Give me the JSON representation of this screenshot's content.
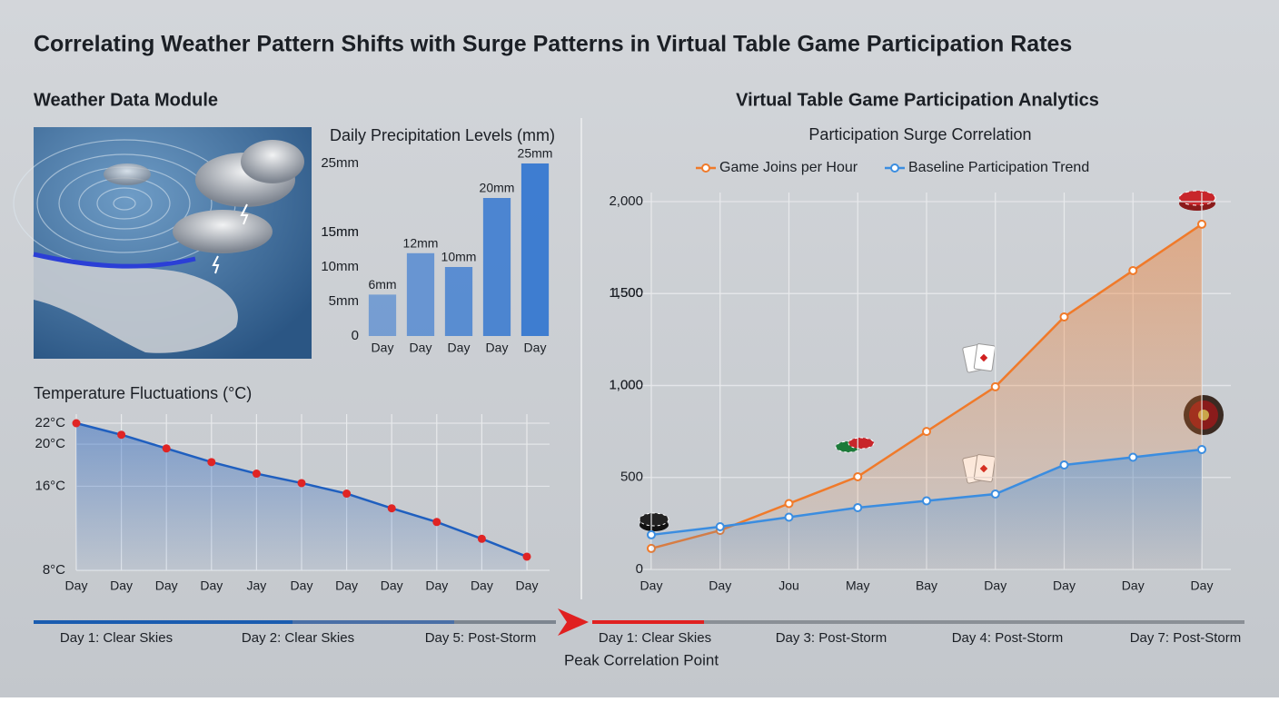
{
  "title": "Correlating Weather Pattern Shifts with Surge Patterns in Virtual Table Game Participation Rates",
  "left_heading": "Weather Data Module",
  "right_heading": "Virtual Table Game Participation Analytics",
  "chart_data": [
    {
      "type": "bar",
      "title": "Daily Precipitation Levels (mm)",
      "categories": [
        "Day",
        "Day",
        "Day",
        "Day",
        "Day"
      ],
      "values": [
        6,
        12,
        10,
        20,
        25
      ],
      "value_labels": [
        "6mm",
        "12mm",
        "10mm",
        "20mm",
        "25mm"
      ],
      "color": "#2f74d0",
      "ylim": [
        0,
        25
      ],
      "yticks": [
        0,
        {
          "value": 5,
          "label": "5mm"
        },
        {
          "value": 10,
          "label": "10mm"
        },
        {
          "value": 15,
          "label": "15mm"
        },
        {
          "value": 15,
          "label": "15mm"
        },
        {
          "value": 25,
          "label": "25mm"
        }
      ],
      "grid": false
    },
    {
      "type": "line",
      "title": "Temperature Fluctuations (°C)",
      "categories": [
        "Day",
        "Day",
        "Day",
        "Day",
        "Jay",
        "Day",
        "Day",
        "Day",
        "Day",
        "Day",
        "Day"
      ],
      "series": [
        {
          "color": "#1f5fbf",
          "marker_color": "#e02424",
          "values": [
            22,
            20.9,
            19.6,
            18.3,
            17.2,
            16.3,
            15.3,
            13.9,
            12.6,
            11.0,
            9.3
          ]
        }
      ],
      "ylim": [
        8,
        22
      ],
      "yticks": [
        {
          "value": 22,
          "label": "22°C"
        },
        {
          "value": 20,
          "label": "20°C"
        },
        {
          "value": 16,
          "label": "16°C"
        },
        {
          "value": 8,
          "label": "8°C"
        }
      ],
      "grid": true
    },
    {
      "type": "line",
      "title": "Participation Surge Correlation",
      "categories": [
        "Day",
        "Day",
        "Jou",
        "May",
        "Bay",
        "Day",
        "Day",
        "Day",
        "Day"
      ],
      "series": [
        {
          "name": "Game Joins per Hour",
          "color": "#f07a2a",
          "values": [
            114,
            212,
            358,
            504,
            750,
            993,
            1373,
            1625,
            1877
          ]
        },
        {
          "name": "Baseline Participation Trend",
          "color": "#3b8de0",
          "values": [
            188,
            232,
            284,
            336,
            373,
            410,
            568,
            610,
            652
          ]
        }
      ],
      "ylim": [
        0,
        2000
      ],
      "yticks": [
        {
          "value": 2000,
          "label": "2,000"
        },
        {
          "value": 1500,
          "label": "1,500"
        },
        {
          "value": 1000,
          "label": "1,000"
        },
        {
          "value": 1500,
          "label": "1,500"
        },
        {
          "value": 1000,
          "label": "1,000"
        },
        1500,
        500,
        0
      ],
      "grid": true
    }
  ],
  "timeline": {
    "labels": [
      "Day 1: Clear Skies",
      "Day 2: Clear Skies",
      "Day 5: Post-Storm",
      "Day 1: Clear Skies",
      "Day 3: Post-Storm",
      "Day 4: Post-Storm",
      "Day 7: Post-Storm"
    ],
    "caption": "Peak Correlation Point"
  }
}
